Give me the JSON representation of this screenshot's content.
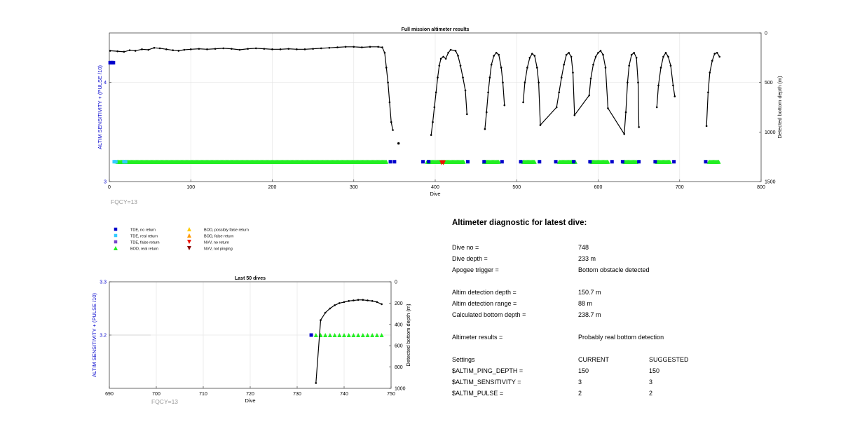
{
  "colors": {
    "tde_no_return": "#0000cc",
    "tde_real_return": "#33ccff",
    "tde_false_return": "#7744cc",
    "bod_real_return": "#22ee22",
    "bod_possibly_false": "#ffcc00",
    "bod_false_return": "#ff9900",
    "nvv_no_return": "#ee1100",
    "nvv_not_pinging": "#880000",
    "left_axis_label": "#0000cc",
    "depth_line": "#000000",
    "fqcy_text": "#999999"
  },
  "chart_data": [
    {
      "id": "full-mission",
      "type": "scatter",
      "title": "Full mission altimeter results",
      "xlabel": "Dive",
      "ylabel_left": "ALTIM SENSITIVITY + (PULSE /10)",
      "ylabel_right": "Detected bottom depth (m)",
      "xlim": [
        0,
        800
      ],
      "ylim_left": [
        3,
        4.5
      ],
      "ylim_right": [
        1500,
        0
      ],
      "x_ticks": [
        "0",
        "100",
        "200",
        "300",
        "400",
        "500",
        "600",
        "700",
        "800"
      ],
      "y_left_ticks": [
        "3",
        "4"
      ],
      "y_right_ticks": [
        "0",
        "500",
        "1000",
        "1500"
      ],
      "grid": true,
      "annotation": "FQCY=13",
      "tde_no_return": [
        {
          "x": 1,
          "y": 4.2
        },
        {
          "x": 2,
          "y": 4.2
        },
        {
          "x": 3,
          "y": 4.2
        },
        {
          "x": 4,
          "y": 4.2
        },
        {
          "x": 5,
          "y": 4.2
        },
        {
          "x": 345,
          "y": 3.2
        },
        {
          "x": 350,
          "y": 3.2
        },
        {
          "x": 385,
          "y": 3.2
        },
        {
          "x": 392,
          "y": 3.2
        },
        {
          "x": 440,
          "y": 3.2
        },
        {
          "x": 460,
          "y": 3.2
        },
        {
          "x": 482,
          "y": 3.2
        },
        {
          "x": 505,
          "y": 3.2
        },
        {
          "x": 528,
          "y": 3.2
        },
        {
          "x": 548,
          "y": 3.2
        },
        {
          "x": 570,
          "y": 3.2
        },
        {
          "x": 590,
          "y": 3.2
        },
        {
          "x": 617,
          "y": 3.2
        },
        {
          "x": 630,
          "y": 3.2
        },
        {
          "x": 650,
          "y": 3.2
        },
        {
          "x": 670,
          "y": 3.2
        },
        {
          "x": 693,
          "y": 3.2
        },
        {
          "x": 732,
          "y": 3.2
        }
      ],
      "tde_real_return": [
        {
          "x": 6,
          "y": 3.2
        },
        {
          "x": 8,
          "y": 3.2
        },
        {
          "x": 18,
          "y": 3.2
        },
        {
          "x": 20,
          "y": 3.2
        }
      ],
      "bod_real_return_ranges": [
        [
          10,
          340
        ],
        [
          390,
          435
        ],
        [
          460,
          478
        ],
        [
          508,
          522
        ],
        [
          552,
          572
        ],
        [
          592,
          612
        ],
        [
          632,
          647
        ],
        [
          672,
          688
        ],
        [
          736,
          748
        ]
      ],
      "nvv_no_return": [
        {
          "x": 408,
          "y": 3.19
        },
        {
          "x": 410,
          "y": 3.19
        }
      ],
      "depth_points": [
        [
          1,
          180
        ],
        [
          10,
          185
        ],
        [
          18,
          190
        ],
        [
          25,
          175
        ],
        [
          32,
          180
        ],
        [
          40,
          165
        ],
        [
          48,
          170
        ],
        [
          55,
          150
        ],
        [
          62,
          155
        ],
        [
          70,
          165
        ],
        [
          78,
          175
        ],
        [
          85,
          180
        ],
        [
          92,
          170
        ],
        [
          100,
          165
        ],
        [
          110,
          160
        ],
        [
          120,
          165
        ],
        [
          130,
          160
        ],
        [
          140,
          155
        ],
        [
          150,
          160
        ],
        [
          160,
          170
        ],
        [
          170,
          160
        ],
        [
          180,
          155
        ],
        [
          190,
          160
        ],
        [
          200,
          165
        ],
        [
          210,
          165
        ],
        [
          220,
          160
        ],
        [
          230,
          165
        ],
        [
          240,
          165
        ],
        [
          250,
          160
        ],
        [
          260,
          155
        ],
        [
          270,
          150
        ],
        [
          280,
          145
        ],
        [
          290,
          140
        ],
        [
          300,
          140
        ],
        [
          310,
          145
        ],
        [
          320,
          140
        ],
        [
          330,
          140
        ],
        [
          335,
          145
        ],
        [
          338,
          200
        ],
        [
          340,
          350
        ],
        [
          342,
          500
        ],
        [
          344,
          700
        ],
        [
          346,
          900
        ],
        [
          348,
          980
        ],
        [
          395,
          1030
        ],
        [
          397,
          900
        ],
        [
          399,
          750
        ],
        [
          401,
          600
        ],
        [
          403,
          450
        ],
        [
          405,
          330
        ],
        [
          407,
          260
        ],
        [
          410,
          240
        ],
        [
          413,
          260
        ],
        [
          416,
          200
        ],
        [
          419,
          170
        ],
        [
          425,
          180
        ],
        [
          428,
          230
        ],
        [
          431,
          330
        ],
        [
          434,
          450
        ],
        [
          437,
          580
        ],
        [
          439,
          820
        ],
        [
          461,
          970
        ],
        [
          463,
          800
        ],
        [
          465,
          600
        ],
        [
          467,
          450
        ],
        [
          469,
          320
        ],
        [
          472,
          230
        ],
        [
          475,
          200
        ],
        [
          478,
          220
        ],
        [
          481,
          350
        ],
        [
          483,
          500
        ],
        [
          485,
          730
        ],
        [
          508,
          700
        ],
        [
          510,
          500
        ],
        [
          513,
          350
        ],
        [
          516,
          250
        ],
        [
          519,
          210
        ],
        [
          522,
          230
        ],
        [
          525,
          350
        ],
        [
          527,
          500
        ],
        [
          529,
          930
        ],
        [
          549,
          750
        ],
        [
          552,
          600
        ],
        [
          555,
          450
        ],
        [
          558,
          320
        ],
        [
          561,
          220
        ],
        [
          564,
          200
        ],
        [
          567,
          240
        ],
        [
          569,
          400
        ],
        [
          571,
          830
        ],
        [
          589,
          630
        ],
        [
          591,
          460
        ],
        [
          594,
          320
        ],
        [
          597,
          240
        ],
        [
          600,
          200
        ],
        [
          603,
          180
        ],
        [
          606,
          220
        ],
        [
          609,
          350
        ],
        [
          612,
          760
        ],
        [
          632,
          1020
        ],
        [
          634,
          800
        ],
        [
          636,
          500
        ],
        [
          638,
          330
        ],
        [
          641,
          220
        ],
        [
          644,
          200
        ],
        [
          647,
          250
        ],
        [
          649,
          500
        ],
        [
          650,
          950
        ],
        [
          672,
          750
        ],
        [
          674,
          530
        ],
        [
          677,
          350
        ],
        [
          680,
          240
        ],
        [
          683,
          200
        ],
        [
          686,
          240
        ],
        [
          689,
          330
        ],
        [
          692,
          530
        ],
        [
          694,
          640
        ],
        [
          733,
          940
        ],
        [
          735,
          600
        ],
        [
          737,
          400
        ],
        [
          740,
          280
        ],
        [
          743,
          210
        ],
        [
          746,
          200
        ],
        [
          749,
          240
        ]
      ],
      "depth_outliers": [
        [
          355,
          1115
        ]
      ]
    },
    {
      "id": "last-50-dives",
      "type": "scatter",
      "title": "Last 50 dives",
      "xlabel": "Dive",
      "ylabel_left": "ALTIM SENSITIVITY + (PULSE /10)",
      "ylabel_right": "Detected bottom depth (m)",
      "xlim": [
        690,
        750
      ],
      "ylim_left": [
        3.1,
        3.3
      ],
      "ylim_right": [
        1000,
        0
      ],
      "x_ticks": [
        "690",
        "700",
        "710",
        "720",
        "730",
        "740",
        "750"
      ],
      "y_left_ticks": [
        "3.2",
        "3.3"
      ],
      "y_right_ticks": [
        "0",
        "200",
        "400",
        "600",
        "800",
        "1000"
      ],
      "grid": true,
      "annotation": "FQCY=13",
      "tde_no_return": [
        {
          "x": 733,
          "y": 3.2
        }
      ],
      "bod_real_return_x": [
        734,
        735,
        736,
        737,
        738,
        739,
        740,
        741,
        742,
        743,
        744,
        745,
        746,
        747,
        748
      ],
      "depth_points": [
        [
          734,
          950
        ],
        [
          735,
          360
        ],
        [
          736,
          290
        ],
        [
          737,
          250
        ],
        [
          738,
          220
        ],
        [
          739,
          200
        ],
        [
          740,
          190
        ],
        [
          741,
          180
        ],
        [
          742,
          175
        ],
        [
          743,
          170
        ],
        [
          744,
          170
        ],
        [
          745,
          175
        ],
        [
          746,
          180
        ],
        [
          747,
          190
        ],
        [
          748,
          210
        ]
      ]
    }
  ],
  "legend": {
    "items": [
      {
        "label": "TDE, no return",
        "marker": "square",
        "color": "#0000cc"
      },
      {
        "label": "TDE, real return",
        "marker": "square",
        "color": "#33ccff"
      },
      {
        "label": "TDE, false return",
        "marker": "square",
        "color": "#7744cc"
      },
      {
        "label": "BOD, real return",
        "marker": "triangle-up",
        "color": "#22ee22"
      },
      {
        "label": "BOD, possibly false return",
        "marker": "triangle-up",
        "color": "#ffcc00"
      },
      {
        "label": "BOD, false return",
        "marker": "triangle-up",
        "color": "#ff9900"
      },
      {
        "label": "NVV, no return",
        "marker": "triangle-down",
        "color": "#ee1100"
      },
      {
        "label": "NVV, not pinging",
        "marker": "triangle-down",
        "color": "#880000"
      }
    ]
  },
  "diagnostic": {
    "title": "Altimeter diagnostic for latest dive:",
    "dive_no_label": "Dive no =",
    "dive_no_value": "748",
    "dive_depth_label": "Dive depth =",
    "dive_depth_value": "233 m",
    "apogee_label": "Apogee trigger =",
    "apogee_value": "Bottom obstacle detected",
    "altim_depth_label": "Altim detection depth =",
    "altim_depth_value": "150.7 m",
    "altim_range_label": "Altim detection range =",
    "altim_range_value": "88 m",
    "calc_depth_label": "Calculated bottom depth =",
    "calc_depth_value": "238.7 m",
    "results_label": "Altimeter results =",
    "results_value": "Probably real bottom detection",
    "settings_label": "Settings",
    "current_label": "CURRENT",
    "suggested_label": "SUGGESTED",
    "ping_depth_label": "$ALTIM_PING_DEPTH =",
    "ping_depth_current": "150",
    "ping_depth_suggested": "150",
    "sensitivity_label": "$ALTIM_SENSITIVITY =",
    "sensitivity_current": "3",
    "sensitivity_suggested": "3",
    "pulse_label": "$ALTIM_PULSE =",
    "pulse_current": "2",
    "pulse_suggested": "2"
  }
}
